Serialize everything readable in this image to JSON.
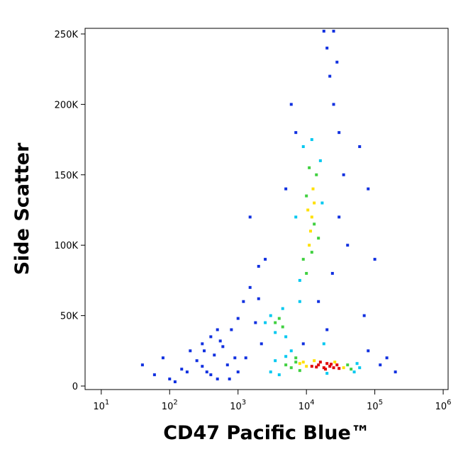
{
  "chart_data": {
    "type": "scatter",
    "x_label": "CD47 Pacific Blue™",
    "y_label": "Side Scatter",
    "x_scale": "log",
    "xlim": [
      5.8,
      1180000
    ],
    "ylim": [
      -2500,
      254000
    ],
    "xticks": [
      {
        "value": 10,
        "label": "10",
        "sup": "1"
      },
      {
        "value": 100,
        "label": "10",
        "sup": "2"
      },
      {
        "value": 1000,
        "label": "10",
        "sup": "3"
      },
      {
        "value": 10000,
        "label": "10",
        "sup": "4"
      },
      {
        "value": 100000,
        "label": "10",
        "sup": "5"
      },
      {
        "value": 1000000,
        "label": "10",
        "sup": "6"
      }
    ],
    "yticks": [
      0,
      {
        "value": 50000,
        "label": "50K"
      },
      {
        "value": 100000,
        "label": "100K"
      },
      {
        "value": 150000,
        "label": "150K"
      },
      {
        "value": 200000,
        "label": "200K"
      },
      {
        "value": 250000,
        "label": "250K"
      }
    ],
    "series": [
      {
        "color": "#1030e0",
        "x": [
          40,
          60,
          80,
          100,
          150,
          200,
          250,
          300,
          350,
          400,
          450,
          500,
          600,
          700,
          800,
          900,
          1000,
          1200,
          1500,
          2000,
          2500,
          120,
          180,
          320,
          550,
          750,
          300,
          400,
          1500,
          1800,
          2200,
          20000,
          22000,
          25000,
          28000,
          18000,
          30000,
          35000,
          40000,
          60000,
          80000,
          100000,
          150000,
          200000,
          6000,
          7000,
          5000,
          15000,
          20000,
          24000,
          30000,
          25000,
          70000,
          9000,
          500,
          1300,
          2000,
          1000,
          80000,
          120000
        ],
        "values": [
          15000,
          8000,
          20000,
          5000,
          12000,
          25000,
          18000,
          30000,
          10000,
          35000,
          22000,
          5000,
          28000,
          15000,
          40000,
          20000,
          10000,
          60000,
          70000,
          85000,
          90000,
          3000,
          10000,
          25000,
          32000,
          5000,
          14000,
          8000,
          120000,
          45000,
          30000,
          240000,
          220000,
          200000,
          230000,
          252000,
          180000,
          150000,
          100000,
          170000,
          140000,
          90000,
          20000,
          10000,
          200000,
          180000,
          140000,
          60000,
          40000,
          80000,
          120000,
          252000,
          50000,
          30000,
          40000,
          20000,
          62000,
          48000,
          25000,
          15000
        ]
      },
      {
        "color": "#00c8f0",
        "x": [
          3000,
          3500,
          4000,
          5000,
          50000,
          55000,
          60000,
          8000,
          7000,
          9000,
          16000,
          17000,
          12000,
          8000,
          3000,
          3500,
          4500,
          5000,
          2500,
          6000,
          18000,
          20000
        ],
        "values": [
          10000,
          18000,
          8000,
          21000,
          10000,
          16000,
          13000,
          75000,
          120000,
          170000,
          160000,
          130000,
          175000,
          60000,
          50000,
          38000,
          55000,
          35000,
          45000,
          25000,
          30000,
          9000
        ]
      },
      {
        "color": "#40d040",
        "x": [
          5000,
          6000,
          7000,
          40000,
          45000,
          8000,
          9000,
          10000,
          14000,
          15000,
          11000,
          12000,
          10000,
          13000,
          3500,
          4000,
          4500,
          7000
        ],
        "values": [
          15000,
          13000,
          17000,
          15000,
          12000,
          11000,
          90000,
          80000,
          150000,
          105000,
          155000,
          95000,
          135000,
          115000,
          45000,
          48000,
          42000,
          20000
        ]
      },
      {
        "color": "#ffe000",
        "x": [
          8000,
          10000,
          13000,
          26000,
          35000,
          9000,
          11000,
          12000,
          13000,
          11500,
          12500,
          10500
        ],
        "values": [
          16000,
          14000,
          18000,
          17000,
          13000,
          17000,
          100000,
          120000,
          130000,
          110000,
          140000,
          125000
        ]
      },
      {
        "color": "#e00000",
        "x": [
          12000,
          15000,
          18000,
          20000,
          22000,
          25000,
          28000,
          16000,
          19000,
          23000,
          30000,
          14000
        ],
        "values": [
          14000,
          15000,
          13000,
          16000,
          14000,
          13000,
          15000,
          17000,
          12000,
          15500,
          12500,
          13500
        ]
      }
    ]
  }
}
